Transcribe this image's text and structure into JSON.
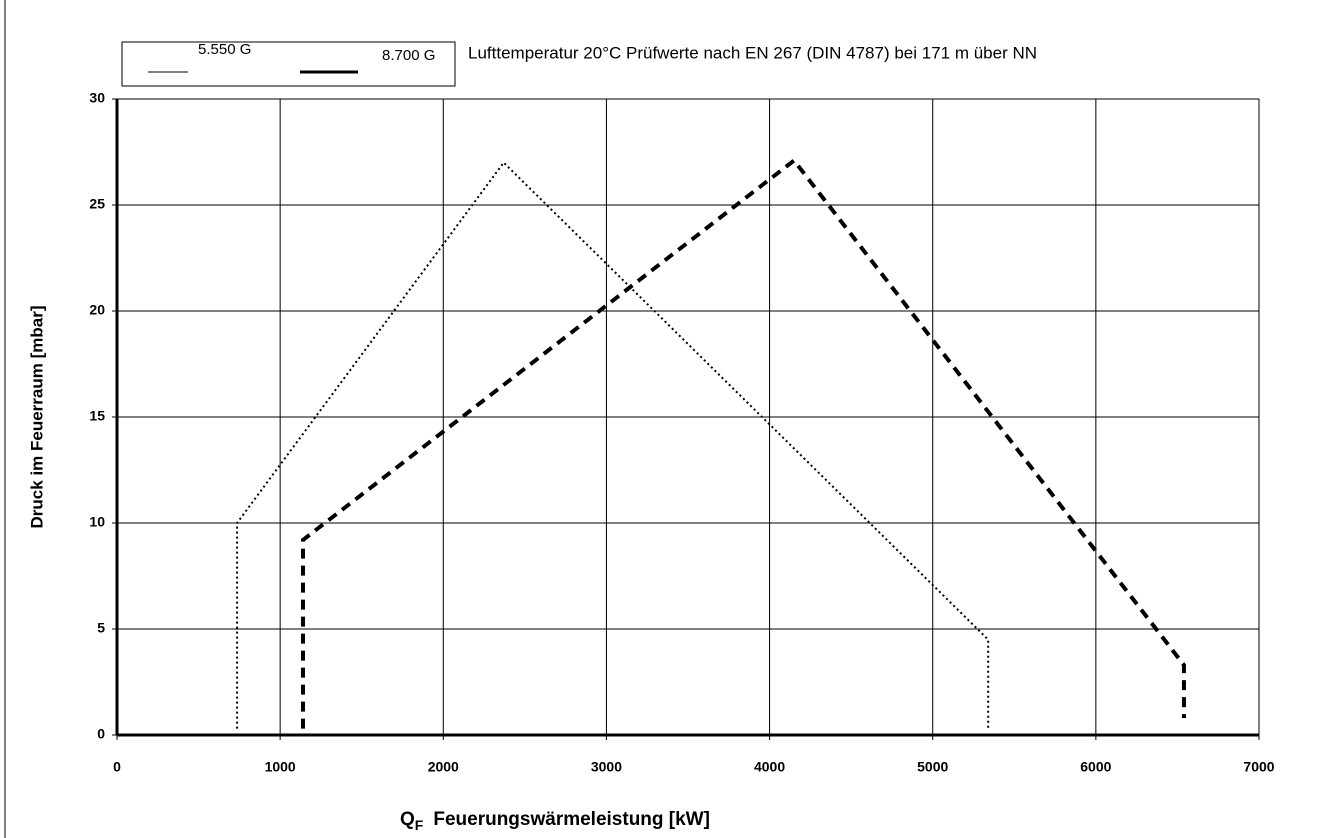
{
  "chart_data": {
    "type": "line",
    "annotation": "Lufttemperatur 20°C Prüfwerte nach EN 267 (DIN 4787) bei 171 m über NN",
    "x_label_symbol": "Q",
    "x_label_subscript": "F",
    "x_label": "Feuerungswärmeleistung [kW]",
    "y_label": "Druck im Feuerraum [mbar]",
    "xlim": [
      0,
      7000
    ],
    "xticks": [
      0,
      1000,
      2000,
      3000,
      4000,
      5000,
      6000,
      7000
    ],
    "ylim": [
      0,
      30
    ],
    "yticks": [
      0,
      5,
      10,
      15,
      20,
      25,
      30
    ],
    "grid": true,
    "series": [
      {
        "name": "5.550 G",
        "color": "#000000",
        "line_style": "dotted",
        "x": [
          736,
          736,
          2370,
          5340,
          5340
        ],
        "values": [
          0.3,
          10,
          27,
          4.5,
          0.3
        ]
      },
      {
        "name": "8.700 G",
        "color": "#000000",
        "line_style": "dashed",
        "x": [
          1140,
          1140,
          4150,
          6540,
          6540
        ],
        "values": [
          0.3,
          9.2,
          27.1,
          3.3,
          0.8
        ]
      }
    ]
  }
}
